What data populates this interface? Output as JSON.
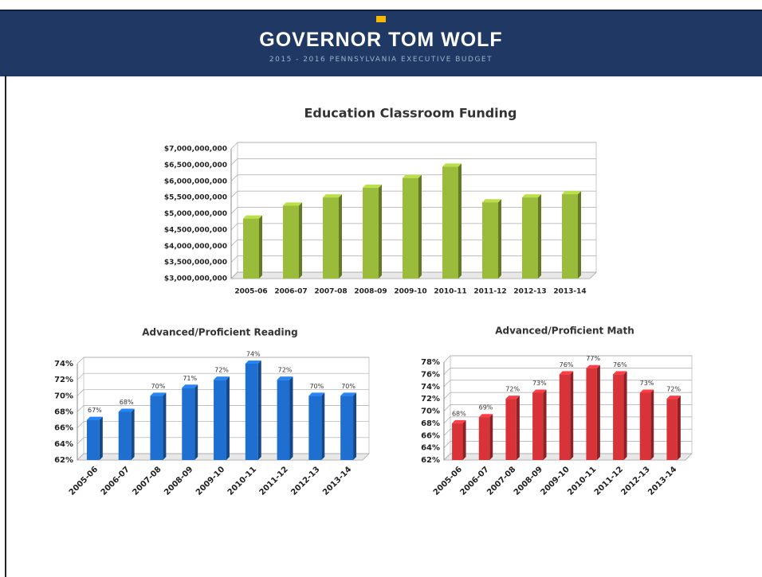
{
  "header": {
    "title": "GOVERNOR TOM WOLF",
    "subtitle": "2015 - 2016 PENNSYLVANIA EXECUTIVE BUDGET"
  },
  "chart_data": [
    {
      "type": "bar",
      "title": "Education Classroom Funding",
      "categories": [
        "2005-06",
        "2006-07",
        "2007-08",
        "2008-09",
        "2009-10",
        "2010-11",
        "2011-12",
        "2012-13",
        "2013-14"
      ],
      "values": [
        4850000000,
        5250000000,
        5500000000,
        5800000000,
        6100000000,
        6450000000,
        5350000000,
        5500000000,
        5600000000
      ],
      "color": "#9bbb3b",
      "ylim": [
        3000000000,
        7000000000
      ],
      "yticks": [
        {
          "value": 3000000000,
          "label": "$3,000,000,000"
        },
        {
          "value": 3500000000,
          "label": "$3,500,000,000"
        },
        {
          "value": 4000000000,
          "label": "$4,000,000,000"
        },
        {
          "value": 4500000000,
          "label": "$4,500,000,000"
        },
        {
          "value": 5000000000,
          "label": "$5,000,000,000"
        },
        {
          "value": 5500000000,
          "label": "$5,500,000,000"
        },
        {
          "value": 6000000000,
          "label": "$6,000,000,000"
        },
        {
          "value": 6500000000,
          "label": "$6,500,000,000"
        },
        {
          "value": 7000000000,
          "label": "$7,000,000,000"
        }
      ],
      "grid": true
    },
    {
      "type": "bar",
      "title": "Advanced/Proficient Reading",
      "categories": [
        "2005-06",
        "2006-07",
        "2007-08",
        "2008-09",
        "2009-10",
        "2010-11",
        "2011-12",
        "2012-13",
        "2013-14"
      ],
      "values": [
        67,
        68,
        70,
        71,
        72,
        74,
        72,
        70,
        70
      ],
      "value_labels": [
        "67%",
        "68%",
        "70%",
        "71%",
        "72%",
        "74%",
        "72%",
        "70%",
        "70%"
      ],
      "color": "#1f6fd1",
      "ylim": [
        62,
        74
      ],
      "yticks": [
        {
          "value": 62,
          "label": "62%"
        },
        {
          "value": 64,
          "label": "64%"
        },
        {
          "value": 66,
          "label": "66%"
        },
        {
          "value": 68,
          "label": "68%"
        },
        {
          "value": 70,
          "label": "70%"
        },
        {
          "value": 72,
          "label": "72%"
        },
        {
          "value": 74,
          "label": "74%"
        }
      ],
      "grid": true
    },
    {
      "type": "bar",
      "title": "Advanced/Proficient Math",
      "categories": [
        "2005-06",
        "2006-07",
        "2007-08",
        "2008-09",
        "2009-10",
        "2010-11",
        "2011-12",
        "2012-13",
        "2013-14"
      ],
      "values": [
        68,
        69,
        72,
        73,
        76,
        77,
        76,
        73,
        72
      ],
      "value_labels": [
        "68%",
        "69%",
        "72%",
        "73%",
        "76%",
        "77%",
        "76%",
        "73%",
        "72%"
      ],
      "color": "#d9333a",
      "ylim": [
        62,
        78
      ],
      "yticks": [
        {
          "value": 62,
          "label": "62%"
        },
        {
          "value": 64,
          "label": "64%"
        },
        {
          "value": 66,
          "label": "66%"
        },
        {
          "value": 68,
          "label": "68%"
        },
        {
          "value": 70,
          "label": "70%"
        },
        {
          "value": 72,
          "label": "72%"
        },
        {
          "value": 74,
          "label": "74%"
        },
        {
          "value": 76,
          "label": "76%"
        },
        {
          "value": 78,
          "label": "78%"
        }
      ],
      "grid": true
    }
  ]
}
